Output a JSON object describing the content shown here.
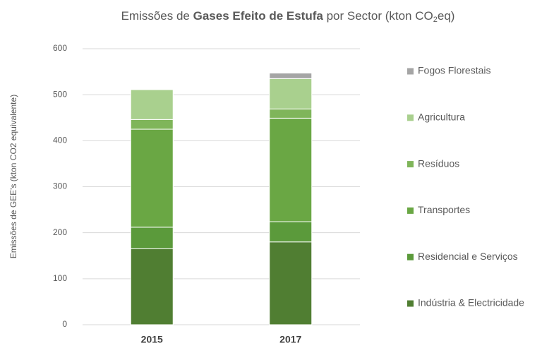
{
  "chart_data": {
    "type": "stacked_bar",
    "title": [
      "Emissões de ",
      "Gases Efeito de Estufa",
      " por Sector (kton CO",
      "2",
      "eq)"
    ],
    "y_label": "Emissões de GEE's (kton CO2 equivalente)",
    "categories": [
      "2015",
      "2017"
    ],
    "series": [
      {
        "name": "Indústria & Electricidade",
        "color": "#507e32",
        "values": [
          165,
          180
        ]
      },
      {
        "name": "Residencial e Serviços",
        "color": "#5b9a3b",
        "values": [
          47,
          44
        ]
      },
      {
        "name": "Transportes",
        "color": "#6aa744",
        "values": [
          213,
          225
        ]
      },
      {
        "name": "Resíduos",
        "color": "#7fb55a",
        "values": [
          21,
          20
        ]
      },
      {
        "name": "Agricultura",
        "color": "#a9d08e",
        "values": [
          65,
          66
        ]
      },
      {
        "name": "Fogos Florestais",
        "color": "#a5a5a5",
        "values": [
          0,
          12
        ]
      }
    ],
    "ylim": [
      0,
      600
    ],
    "yticks": [
      0,
      100,
      200,
      300,
      400,
      500,
      600
    ],
    "grid": true
  }
}
